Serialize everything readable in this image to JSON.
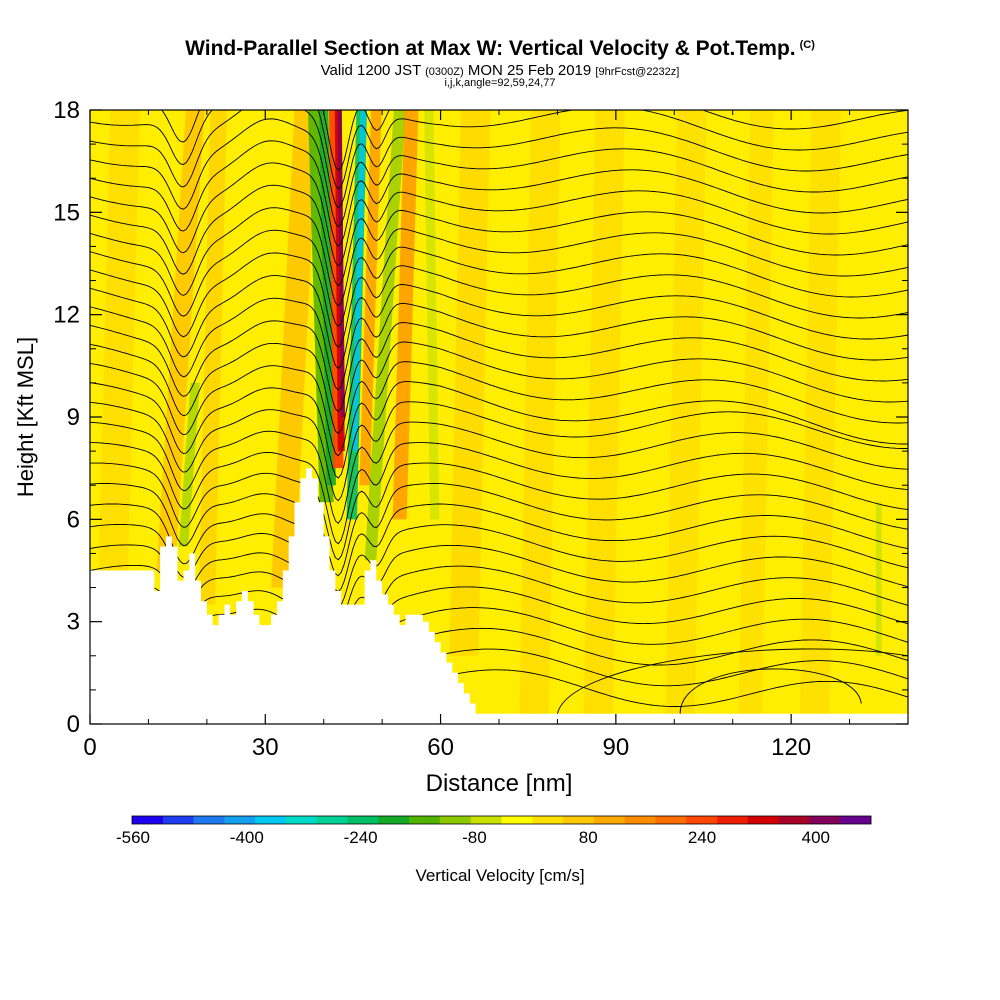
{
  "title": {
    "main": "Wind-Parallel Section at Max W: Vertical Velocity & Pot.Temp.",
    "copyright": "(C)",
    "valid_prefix": "Valid 1200 JST",
    "valid_utc": "(0300Z)",
    "valid_date": "MON 25 Feb 2019",
    "forecast": "[9hrFcst@2232z]",
    "ijk": "i,j,k,angle=92,59,24,77"
  },
  "colors": {
    "background_field": "#ffee00",
    "terrain": "#ffffff",
    "contour": "#000000"
  },
  "chart_data": {
    "type": "heatmap",
    "xlabel": "Distance [nm]",
    "ylabel": "Height [Kft MSL]",
    "xlim": [
      0,
      140
    ],
    "ylim": [
      0,
      18
    ],
    "x_ticks": [
      0,
      30,
      60,
      90,
      120
    ],
    "y_ticks": [
      0,
      3,
      6,
      9,
      12,
      15,
      18
    ],
    "colorbar": {
      "label": "Vertical Velocity [cm/s]",
      "tick_labels": [
        "-560",
        "-400",
        "-240",
        "-80",
        "80",
        "240",
        "400"
      ],
      "colors": [
        "#1e00f0",
        "#1e3cf0",
        "#1e78f0",
        "#14a0f0",
        "#00c8f0",
        "#00dcc8",
        "#00d296",
        "#00be64",
        "#14aa28",
        "#50b400",
        "#8cc800",
        "#c8e100",
        "#ffff00",
        "#ffe100",
        "#ffc800",
        "#ffaa00",
        "#ff8c00",
        "#ff6e00",
        "#ff4600",
        "#f01e00",
        "#d20000",
        "#aa0028",
        "#82005a",
        "#64008c"
      ]
    },
    "terrain_profile": {
      "x": [
        0,
        10,
        11,
        12,
        13,
        14,
        15,
        16,
        17,
        18,
        19,
        20,
        21,
        22,
        23,
        24,
        25,
        26,
        27,
        28,
        29,
        30,
        31,
        32,
        33,
        34,
        35,
        36,
        37,
        38,
        39,
        40,
        41,
        42,
        43,
        44,
        45,
        46,
        47,
        48,
        49,
        50,
        51,
        52,
        53,
        54,
        55,
        56,
        57,
        58,
        59,
        60,
        61,
        62,
        63,
        64,
        65,
        66,
        67,
        68,
        69,
        70,
        71,
        72,
        73,
        74,
        75,
        76,
        77,
        78,
        79,
        80,
        140
      ],
      "y": [
        4.5,
        4.5,
        3.9,
        5.2,
        5.5,
        5.2,
        4.2,
        4.5,
        5.0,
        4.2,
        3.6,
        3.2,
        2.9,
        3.2,
        3.5,
        3.2,
        3.6,
        3.9,
        3.6,
        3.2,
        2.9,
        2.9,
        3.2,
        3.6,
        4.5,
        5.5,
        6.5,
        7.2,
        7.5,
        7.2,
        6.5,
        5.5,
        4.5,
        3.9,
        3.5,
        3.5,
        3.5,
        3.5,
        4.5,
        4.8,
        4.2,
        3.8,
        3.5,
        3.2,
        2.9,
        3.2,
        3.2,
        3.2,
        3.0,
        2.7,
        2.4,
        2.1,
        1.8,
        1.5,
        1.2,
        0.9,
        0.6,
        0.3,
        0.3,
        0.3,
        0.3,
        0.3,
        0.3,
        0.3,
        0.3,
        0.3,
        0.3,
        0.3,
        0.3,
        0.3,
        0.3,
        0.3,
        0.3
      ]
    },
    "updraft_core_x": [
      42.5,
      43.8,
      45,
      46.5
    ],
    "contour_label": "",
    "annotation": ""
  }
}
